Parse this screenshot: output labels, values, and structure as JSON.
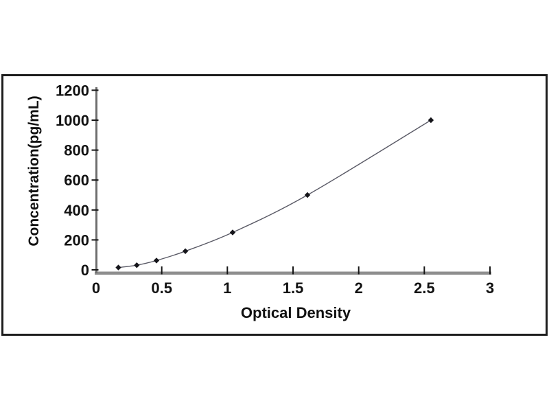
{
  "figure": {
    "background_color": "#ffffff",
    "frame_color": "#1d1d1d"
  },
  "chart_data": {
    "type": "line",
    "title": "",
    "xlabel": "Optical Density",
    "ylabel": "Concentration(pg/mL)",
    "x": [
      0.17,
      0.31,
      0.46,
      0.68,
      1.04,
      1.61,
      2.55
    ],
    "y": [
      15.6,
      31.2,
      62.5,
      125,
      250,
      500,
      1000
    ],
    "xlim": [
      0,
      3
    ],
    "ylim": [
      0,
      1200
    ],
    "x_ticks": [
      0,
      0.5,
      1,
      1.5,
      2,
      2.5,
      3
    ],
    "x_tick_labels": [
      "0",
      "0.5",
      "1",
      "1.5",
      "2",
      "2.5",
      "3"
    ],
    "y_ticks": [
      0,
      200,
      400,
      600,
      800,
      1000,
      1200
    ],
    "y_tick_labels": [
      "0",
      "200",
      "400",
      "600",
      "800",
      "1000",
      "1200"
    ],
    "grid": false,
    "legend": null,
    "marker": "diamond",
    "colors": {
      "marker": "#15151a",
      "line": "#5a5a66",
      "axis_x": "#8e8e8e",
      "axis_y": "#6e6e6e",
      "tick": "#161616",
      "text": "#111111"
    }
  }
}
